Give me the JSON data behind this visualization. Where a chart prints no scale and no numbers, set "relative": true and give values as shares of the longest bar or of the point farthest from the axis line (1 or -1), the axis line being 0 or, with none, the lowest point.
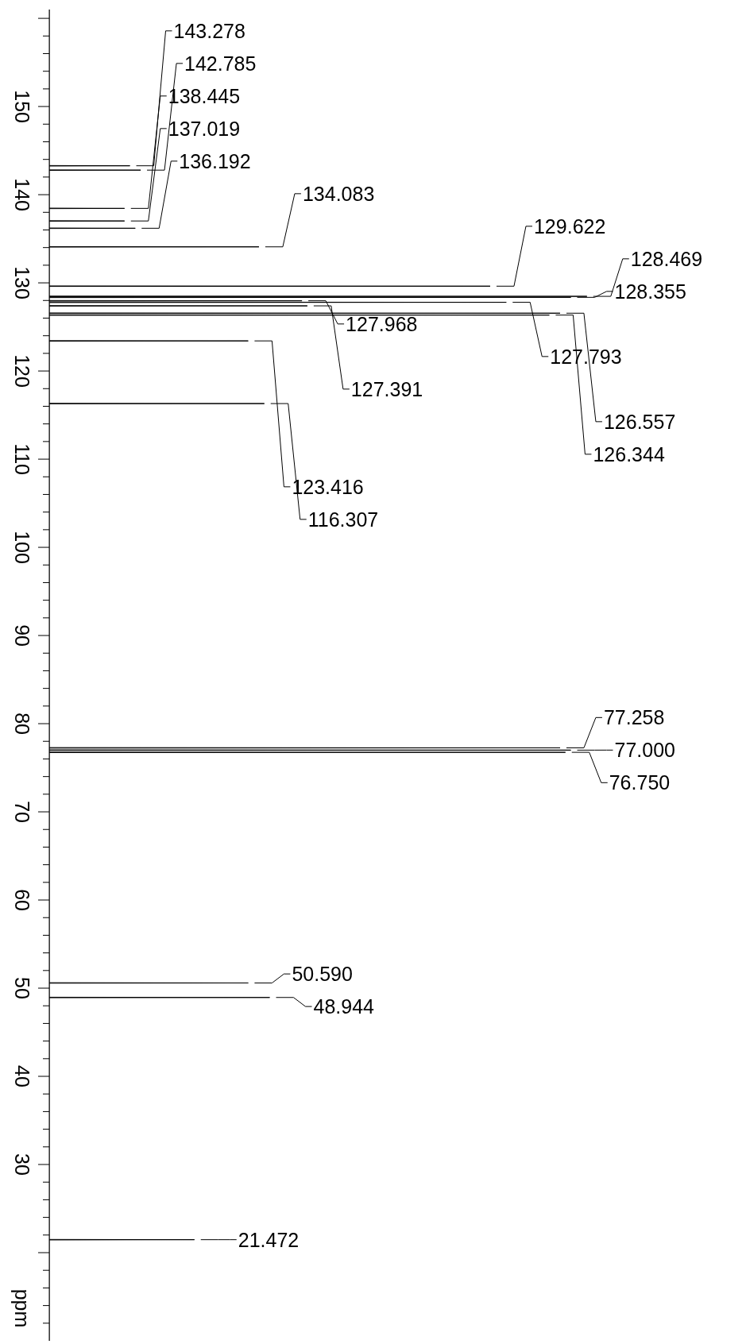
{
  "chart_data": {
    "type": "line",
    "relative": true,
    "orientation": "horizontal",
    "ylabel": "ppm",
    "ylim": [
      10,
      161
    ],
    "yticks": [
      {
        "value": 160,
        "label": null
      },
      {
        "value": 158,
        "label": null
      },
      {
        "value": 156,
        "label": null
      },
      {
        "value": 154,
        "label": null
      },
      {
        "value": 152,
        "label": null
      },
      150,
      {
        "value": 148,
        "label": null
      },
      {
        "value": 146,
        "label": null
      },
      {
        "value": 144,
        "label": null
      },
      {
        "value": 142,
        "label": null
      },
      140,
      {
        "value": 138,
        "label": null
      },
      {
        "value": 136,
        "label": null
      },
      {
        "value": 134,
        "label": null
      },
      {
        "value": 132,
        "label": null
      },
      130,
      {
        "value": 128,
        "label": null
      },
      {
        "value": 126,
        "label": null
      },
      {
        "value": 124,
        "label": null
      },
      {
        "value": 122,
        "label": null
      },
      120,
      {
        "value": 118,
        "label": null
      },
      {
        "value": 116,
        "label": null
      },
      {
        "value": 114,
        "label": null
      },
      {
        "value": 112,
        "label": null
      },
      110,
      {
        "value": 108,
        "label": null
      },
      {
        "value": 106,
        "label": null
      },
      {
        "value": 104,
        "label": null
      },
      {
        "value": 102,
        "label": null
      },
      100,
      {
        "value": 98,
        "label": null
      },
      {
        "value": 96,
        "label": null
      },
      {
        "value": 94,
        "label": null
      },
      {
        "value": 92,
        "label": null
      },
      90,
      {
        "value": 88,
        "label": null
      },
      {
        "value": 86,
        "label": null
      },
      {
        "value": 84,
        "label": null
      },
      {
        "value": 82,
        "label": null
      },
      80,
      {
        "value": 78,
        "label": null
      },
      {
        "value": 76,
        "label": null
      },
      {
        "value": 74,
        "label": null
      },
      {
        "value": 72,
        "label": null
      },
      70,
      {
        "value": 68,
        "label": null
      },
      {
        "value": 66,
        "label": null
      },
      {
        "value": 64,
        "label": null
      },
      {
        "value": 62,
        "label": null
      },
      60,
      {
        "value": 58,
        "label": null
      },
      {
        "value": 56,
        "label": null
      },
      {
        "value": 54,
        "label": null
      },
      {
        "value": 52,
        "label": null
      },
      50,
      {
        "value": 48,
        "label": null
      },
      {
        "value": 46,
        "label": null
      },
      {
        "value": 44,
        "label": null
      },
      {
        "value": 42,
        "label": null
      },
      40,
      {
        "value": 38,
        "label": null
      },
      {
        "value": 36,
        "label": null
      },
      {
        "value": 34,
        "label": null
      },
      {
        "value": 32,
        "label": null
      },
      30,
      {
        "value": 28,
        "label": null
      },
      {
        "value": 26,
        "label": null
      },
      {
        "value": 24,
        "label": null
      },
      {
        "value": 22,
        "label": null
      },
      {
        "value": 20,
        "label": null
      },
      {
        "value": 18,
        "label": null
      },
      {
        "value": 16,
        "label": null
      },
      {
        "value": 14,
        "label": null
      },
      {
        "value": 12,
        "label": null
      }
    ],
    "series": [
      {
        "color": "#000000",
        "x": [
          161,
          143.308,
          143.278,
          143.248,
          142.815,
          142.785,
          142.755,
          138.475,
          138.445,
          138.415,
          137.049,
          137.019,
          136.989,
          136.222,
          136.192,
          136.162,
          134.113,
          134.083,
          134.053,
          129.652,
          129.622,
          129.592,
          128.499,
          128.469,
          128.439,
          128.385,
          128.355,
          128.325,
          127.998,
          127.968,
          127.938,
          127.823,
          127.793,
          127.763,
          127.421,
          127.391,
          127.361,
          126.587,
          126.557,
          126.527,
          126.374,
          126.344,
          126.314,
          123.446,
          123.416,
          123.386,
          116.337,
          116.307,
          116.277,
          77.288,
          77.258,
          77.228,
          77.03,
          77.0,
          76.97,
          76.78,
          76.75,
          76.72,
          50.62,
          50.59,
          50.56,
          48.974,
          48.944,
          48.914,
          21.502,
          21.472,
          21.442,
          10
        ],
        "values": [
          0,
          0,
          0.15,
          0,
          0,
          0.17,
          0,
          0,
          0.14,
          0,
          0,
          0.14,
          0,
          0,
          0.16,
          0,
          0,
          0.39,
          0,
          0,
          0.82,
          0,
          0,
          1,
          0,
          0,
          0.97,
          0,
          0,
          0.47,
          0,
          0,
          0.85,
          0,
          0,
          0.48,
          0,
          0,
          0.95,
          0,
          0,
          0.93,
          0,
          0,
          0.37,
          0,
          0,
          0.4,
          0,
          0,
          0.95,
          0,
          0,
          0.97,
          0,
          0,
          0.96,
          0,
          0,
          0.37,
          0,
          0,
          0.41,
          0,
          0,
          0.27,
          0,
          0
        ]
      }
    ],
    "annotations": [
      {
        "text": "143.278",
        "y": 143.278,
        "x": 0.15
      },
      {
        "text": "142.785",
        "y": 142.785,
        "x": 0.17
      },
      {
        "text": "138.445",
        "y": 138.445,
        "x": 0.14
      },
      {
        "text": "137.019",
        "y": 137.019,
        "x": 0.14
      },
      {
        "text": "136.192",
        "y": 136.192,
        "x": 0.16
      },
      {
        "text": "134.083",
        "y": 134.083,
        "x": 0.39
      },
      {
        "text": "129.622",
        "y": 129.622,
        "x": 0.82
      },
      {
        "text": "128.469",
        "y": 128.469,
        "x": 1
      },
      {
        "text": "128.355",
        "y": 128.355,
        "x": 0.97
      },
      {
        "text": "127.968",
        "y": 127.968,
        "x": 0.47
      },
      {
        "text": "127.793",
        "y": 127.793,
        "x": 0.85
      },
      {
        "text": "127.391",
        "y": 127.391,
        "x": 0.48
      },
      {
        "text": "126.557",
        "y": 126.557,
        "x": 0.95
      },
      {
        "text": "126.344",
        "y": 126.344,
        "x": 0.93
      },
      {
        "text": "123.416",
        "y": 123.416,
        "x": 0.37
      },
      {
        "text": "116.307",
        "y": 116.307,
        "x": 0.4
      },
      {
        "text": "77.258",
        "y": 77.258,
        "x": 0.95
      },
      {
        "text": "77.000",
        "y": 77.0,
        "x": 0.97
      },
      {
        "text": "76.750",
        "y": 76.75,
        "x": 0.96
      },
      {
        "text": "50.590",
        "y": 50.59,
        "x": 0.37
      },
      {
        "text": "48.944",
        "y": 48.944,
        "x": 0.41
      },
      {
        "text": "21.472",
        "y": 21.472,
        "x": 0.27
      }
    ]
  }
}
